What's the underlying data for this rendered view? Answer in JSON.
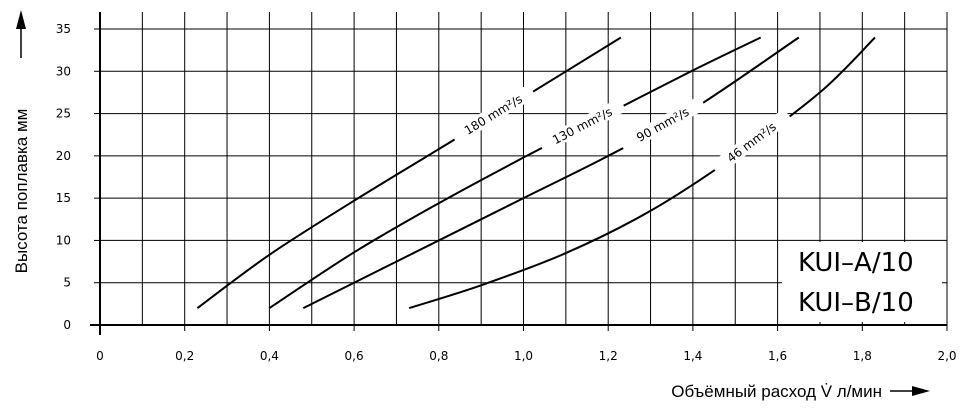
{
  "chart_data": {
    "type": "line",
    "title": "",
    "xlabel": "Объёмный расход V̇ л/мин",
    "ylabel": "Высота поплавка мм",
    "xlim": [
      0,
      2.0
    ],
    "ylim": [
      0,
      36
    ],
    "x_ticks": [
      0,
      0.2,
      0.4,
      0.6,
      0.8,
      1.0,
      1.2,
      1.4,
      1.6,
      1.8,
      2.0
    ],
    "x_tick_labels": [
      "0",
      "0,2",
      "0,4",
      "0,6",
      "0,8",
      "1,0",
      "1,2",
      "1,4",
      "1,6",
      "1,8",
      "2,0"
    ],
    "y_ticks": [
      0,
      5,
      10,
      15,
      20,
      25,
      30,
      35
    ],
    "y_tick_labels": [
      "0",
      "5",
      "10",
      "15",
      "20",
      "25",
      "30",
      "35"
    ],
    "grid": true,
    "series": [
      {
        "name": "180 mm²/s",
        "points": [
          [
            0.23,
            2
          ],
          [
            0.4,
            8.3
          ],
          [
            0.6,
            14.7
          ],
          [
            0.8,
            20.8
          ],
          [
            1.0,
            26.9
          ],
          [
            1.23,
            34
          ]
        ]
      },
      {
        "name": "130 mm²/s",
        "points": [
          [
            0.4,
            2
          ],
          [
            0.6,
            8.6
          ],
          [
            0.8,
            14.4
          ],
          [
            1.0,
            19.8
          ],
          [
            1.2,
            25
          ],
          [
            1.4,
            30.1
          ],
          [
            1.56,
            34
          ]
        ]
      },
      {
        "name": "90 mm²/s",
        "points": [
          [
            0.48,
            2
          ],
          [
            0.7,
            7.5
          ],
          [
            1.0,
            15
          ],
          [
            1.2,
            20
          ],
          [
            1.4,
            25.5
          ],
          [
            1.65,
            34
          ]
        ]
      },
      {
        "name": "46 mm²/s",
        "points": [
          [
            0.73,
            2
          ],
          [
            0.9,
            4.7
          ],
          [
            1.1,
            8.5
          ],
          [
            1.3,
            13.5
          ],
          [
            1.5,
            20
          ],
          [
            1.7,
            27.5
          ],
          [
            1.83,
            34
          ]
        ]
      }
    ],
    "annotations": [
      "KUI–A/10",
      "KUI–B/10"
    ]
  }
}
